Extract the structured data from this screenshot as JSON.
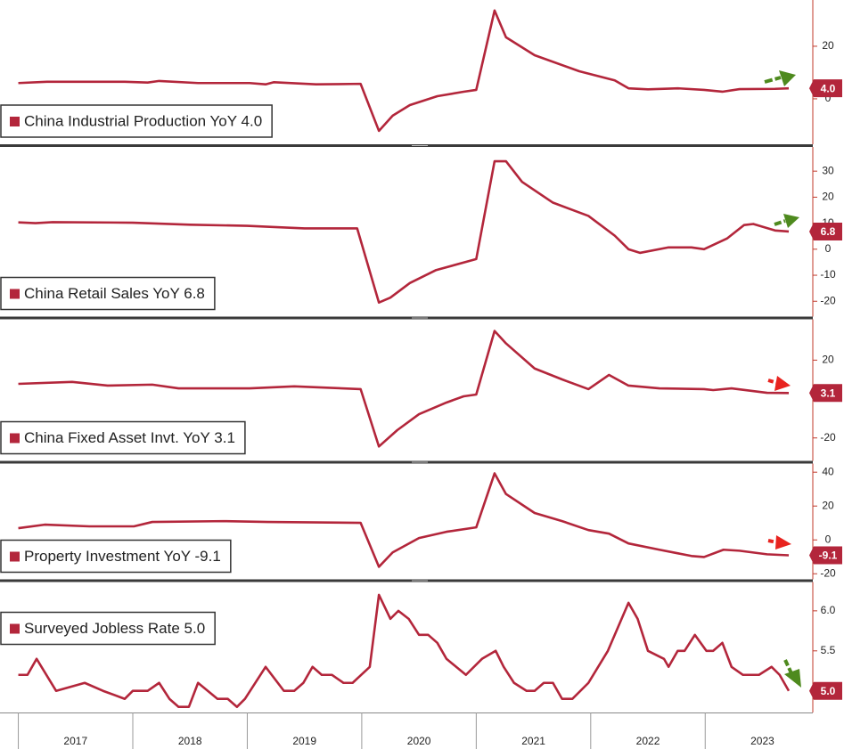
{
  "chart_data": [
    {
      "type": "line",
      "legend": "lower left",
      "end_label": "4.0",
      "x": [
        2017.0,
        2017.25,
        2017.93,
        2018.13,
        2018.23,
        2018.57,
        2019.02,
        2019.16,
        2019.23,
        2019.6,
        2019.99,
        2020.15,
        2020.27,
        2020.42,
        2020.66,
        2020.89,
        2021.0,
        2021.16,
        2021.26,
        2021.51,
        2021.9,
        2022.21,
        2022.33,
        2022.5,
        2022.76,
        2022.99,
        2023.15,
        2023.3,
        2023.61,
        2023.73
      ],
      "series": [
        {
          "name": "China Industrial Production YoY 4.0",
          "color": "#b3263b",
          "values": [
            6.0,
            6.5,
            6.5,
            6.2,
            6.8,
            6.0,
            6.0,
            5.5,
            6.3,
            5.5,
            5.7,
            -12.2,
            -6.4,
            -2.4,
            1.0,
            2.7,
            3.4,
            33.6,
            23.4,
            16.6,
            10.5,
            7.0,
            4.0,
            3.6,
            4.0,
            3.4,
            2.7,
            3.7,
            3.8,
            4.0
          ]
        }
      ],
      "xlim": [
        2016.84,
        2023.94
      ],
      "ylim": [
        -17.3,
        37.6
      ],
      "yticks": [
        0,
        20
      ]
    },
    {
      "type": "line",
      "legend": "lower left",
      "end_label": "6.8",
      "x": [
        2017.0,
        2017.15,
        2017.3,
        2018.0,
        2018.5,
        2019.0,
        2019.5,
        2019.96,
        2020.15,
        2020.25,
        2020.42,
        2020.65,
        2021.0,
        2021.16,
        2021.26,
        2021.4,
        2021.67,
        2021.98,
        2022.21,
        2022.33,
        2022.43,
        2022.68,
        2022.88,
        2022.99,
        2023.19,
        2023.34,
        2023.42,
        2023.61,
        2023.73
      ],
      "series": [
        {
          "name": "China Retail Sales YoY 6.8",
          "color": "#b3263b",
          "values": [
            10.3,
            10.0,
            10.4,
            10.2,
            9.4,
            9.0,
            8.0,
            8.0,
            -20.5,
            -18.6,
            -13.0,
            -8.0,
            -3.8,
            33.8,
            33.8,
            25.9,
            17.9,
            12.8,
            5.2,
            0,
            -1.4,
            0.7,
            0.7,
            0,
            4.1,
            9.3,
            9.7,
            7.2,
            6.8
          ]
        }
      ],
      "xlim": [
        2016.84,
        2023.94
      ],
      "ylim": [
        -25.9,
        39.3
      ],
      "yticks": [
        -20,
        -10,
        0,
        10,
        20,
        30
      ]
    },
    {
      "type": "line",
      "legend": "lower left",
      "end_label": "3.1",
      "x": [
        2017.0,
        2017.47,
        2017.78,
        2018.17,
        2018.4,
        2019.02,
        2019.41,
        2019.99,
        2020.15,
        2020.31,
        2020.5,
        2020.74,
        2020.89,
        2021.0,
        2021.16,
        2021.26,
        2021.51,
        2021.75,
        2021.98,
        2022.16,
        2022.33,
        2022.6,
        2022.99,
        2023.07,
        2023.23,
        2023.54,
        2023.73
      ],
      "series": [
        {
          "name": "China Fixed Asset Invt. YoY 3.1",
          "color": "#b3263b",
          "values": [
            7.8,
            8.8,
            6.9,
            7.4,
            5.5,
            5.5,
            6.5,
            5.1,
            -24.4,
            -16.0,
            -7.8,
            -1.8,
            1.4,
            2.3,
            35.0,
            28.6,
            15.7,
            10.1,
            5.1,
            12.4,
            6.9,
            5.5,
            5.1,
            4.6,
            5.5,
            3.2,
            3.1
          ]
        }
      ],
      "xlim": [
        2016.84,
        2023.94
      ],
      "ylim": [
        -31.8,
        41.0
      ],
      "yticks": [
        -20,
        20
      ]
    },
    {
      "type": "line",
      "legend": "lower left",
      "end_label": "-9.1",
      "x": [
        2017.0,
        2017.23,
        2017.62,
        2018.01,
        2018.17,
        2018.79,
        2019.18,
        2019.99,
        2020.15,
        2020.27,
        2020.5,
        2020.74,
        2021.0,
        2021.16,
        2021.26,
        2021.51,
        2021.75,
        2021.98,
        2022.16,
        2022.33,
        2022.6,
        2022.88,
        2022.99,
        2023.16,
        2023.3,
        2023.54,
        2023.73
      ],
      "series": [
        {
          "name": "Property Investment YoY -9.1",
          "color": "#b3263b",
          "values": [
            6.9,
            9.0,
            8.0,
            8.0,
            10.6,
            11.1,
            10.6,
            10.1,
            -15.9,
            -7.4,
            1.1,
            4.8,
            7.4,
            39.3,
            27.1,
            15.9,
            11.1,
            5.8,
            3.7,
            -2.1,
            -5.8,
            -9.5,
            -10.1,
            -5.8,
            -6.4,
            -8.5,
            -9.1
          ]
        }
      ],
      "xlim": [
        2016.84,
        2023.94
      ],
      "ylim": [
        -23.3,
        45.1
      ],
      "yticks": [
        -20,
        0,
        20,
        40
      ]
    },
    {
      "type": "line",
      "legend": "upper left",
      "end_label": "5.0",
      "x": [
        2017.0,
        2017.08,
        2017.16,
        2017.33,
        2017.58,
        2017.74,
        2017.93,
        2018.0,
        2018.13,
        2018.23,
        2018.32,
        2018.4,
        2018.49,
        2018.57,
        2018.74,
        2018.83,
        2018.91,
        2018.98,
        2019.16,
        2019.32,
        2019.41,
        2019.49,
        2019.57,
        2019.65,
        2019.74,
        2019.84,
        2019.92,
        2020.07,
        2020.15,
        2020.25,
        2020.32,
        2020.41,
        2020.5,
        2020.58,
        2020.66,
        2020.74,
        2020.91,
        2021.05,
        2021.17,
        2021.24,
        2021.33,
        2021.44,
        2021.51,
        2021.59,
        2021.67,
        2021.75,
        2021.84,
        2021.98,
        2022.15,
        2022.33,
        2022.41,
        2022.5,
        2022.64,
        2022.68,
        2022.76,
        2022.82,
        2022.91,
        2023.01,
        2023.07,
        2023.15,
        2023.23,
        2023.33,
        2023.47,
        2023.58,
        2023.65,
        2023.73
      ],
      "series": [
        {
          "name": "Surveyed Jobless Rate 5.0",
          "color": "#b3263b",
          "values": [
            5.2,
            5.2,
            5.4,
            5.0,
            5.1,
            5.0,
            4.9,
            5.0,
            5.0,
            5.1,
            4.9,
            4.8,
            4.8,
            5.1,
            4.9,
            4.9,
            4.8,
            4.9,
            5.3,
            5.0,
            5.0,
            5.1,
            5.3,
            5.2,
            5.2,
            5.1,
            5.1,
            5.3,
            6.2,
            5.9,
            6.0,
            5.9,
            5.7,
            5.7,
            5.6,
            5.4,
            5.2,
            5.4,
            5.5,
            5.3,
            5.1,
            5.0,
            5.0,
            5.1,
            5.1,
            4.9,
            4.9,
            5.1,
            5.5,
            6.1,
            5.9,
            5.5,
            5.4,
            5.3,
            5.5,
            5.5,
            5.7,
            5.5,
            5.5,
            5.6,
            5.3,
            5.2,
            5.2,
            5.3,
            5.2,
            5.0
          ]
        }
      ],
      "xlim": [
        2016.84,
        2023.94
      ],
      "ylim": [
        4.73,
        6.36
      ],
      "yticks": [
        {
          "value": 5,
          "label": "5.0"
        },
        {
          "value": 5.5,
          "label": "5.5"
        },
        {
          "value": 6,
          "label": "6.0"
        }
      ],
      "xticks": [
        {
          "value": 2017.5,
          "label": "2017"
        },
        {
          "value": 2018.5,
          "label": "2018"
        },
        {
          "value": 2019.5,
          "label": "2019"
        },
        {
          "value": 2020.5,
          "label": "2020"
        },
        {
          "value": 2021.5,
          "label": "2021"
        },
        {
          "value": 2022.5,
          "label": "2022"
        },
        {
          "value": 2023.5,
          "label": "2023"
        }
      ]
    }
  ]
}
